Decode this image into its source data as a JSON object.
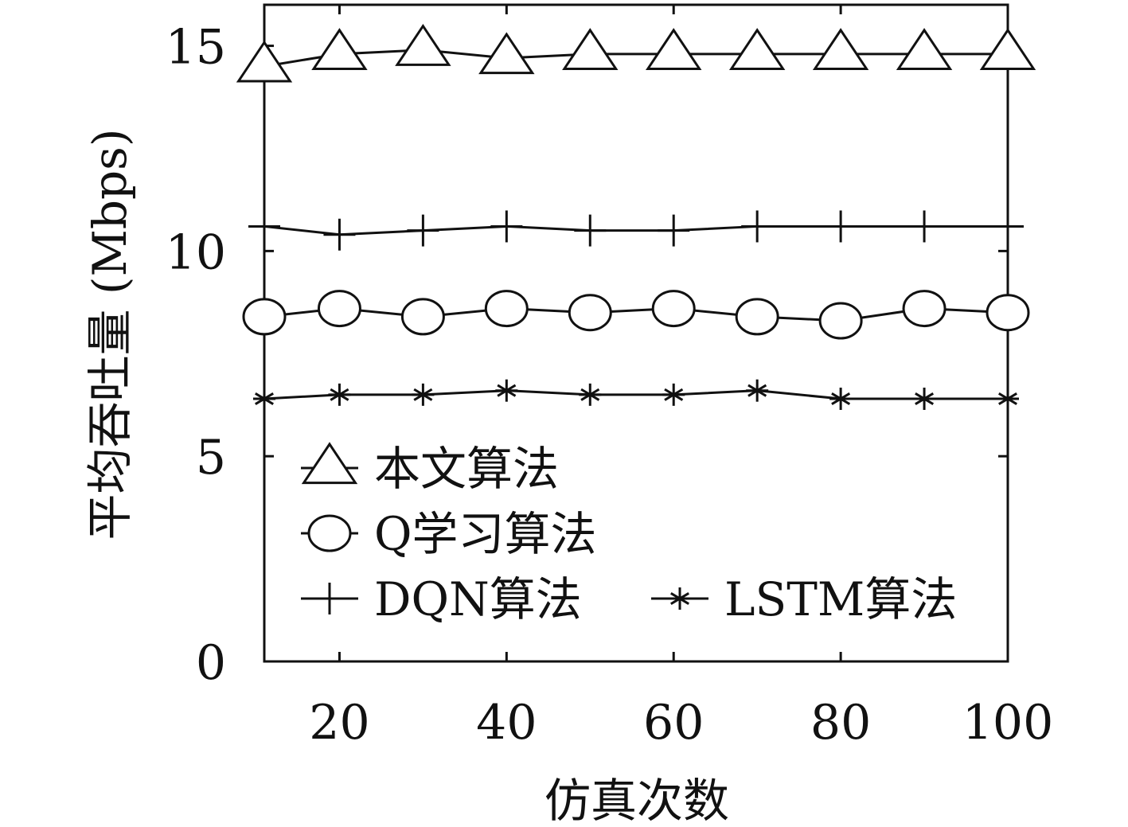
{
  "chart_data": {
    "type": "line",
    "xlabel": "仿真次数",
    "ylabel": "平均吞吐量 (Mbps)",
    "x": [
      11,
      20,
      30,
      40,
      50,
      60,
      70,
      80,
      90,
      100
    ],
    "xlim": [
      11,
      100
    ],
    "ylim": [
      0,
      16
    ],
    "xticks": [
      20,
      40,
      60,
      80,
      100
    ],
    "yticks": [
      0,
      5,
      10,
      15
    ],
    "grid": false,
    "legend_position": "bottom-left",
    "line_color": "#111111",
    "series": [
      {
        "name": "本文算法",
        "marker": "triangle",
        "values": [
          14.5,
          14.8,
          14.9,
          14.7,
          14.8,
          14.8,
          14.8,
          14.8,
          14.8,
          14.8
        ]
      },
      {
        "name": "Q学习算法",
        "marker": "circle",
        "values": [
          8.4,
          8.6,
          8.4,
          8.6,
          8.5,
          8.6,
          8.4,
          8.3,
          8.6,
          8.5
        ]
      },
      {
        "name": "DQN算法",
        "marker": "plus",
        "values": [
          10.6,
          10.4,
          10.5,
          10.6,
          10.5,
          10.5,
          10.6,
          10.6,
          10.6,
          10.6
        ]
      },
      {
        "name": "LSTM算法",
        "marker": "star",
        "values": [
          6.4,
          6.5,
          6.5,
          6.6,
          6.5,
          6.5,
          6.6,
          6.4,
          6.4,
          6.4
        ]
      }
    ]
  }
}
